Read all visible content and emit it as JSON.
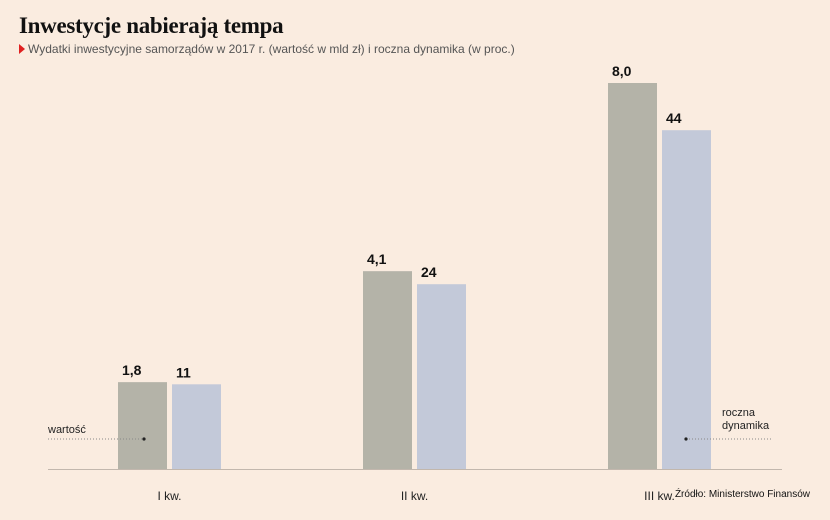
{
  "header": {
    "title": "Inwestycje nabierają tempa",
    "subtitle": "Wydatki inwestycyjne samorządów w 2017 r. (wartość w mld zł) i roczna dynamika (w proc.)"
  },
  "source": "Źródło: Ministerstwo Finansów",
  "colors": {
    "background": "#faece0",
    "series_value": "#b4b3a8",
    "series_growth": "#c3c9d9",
    "marker": "#e02020"
  },
  "chart_data": {
    "type": "bar",
    "categories": [
      "I kw.",
      "II kw.",
      "III kw."
    ],
    "series": [
      {
        "key": "value",
        "values": [
          1.8,
          4.1,
          8.0
        ],
        "labels": [
          "1,8",
          "4,1",
          "8,0"
        ]
      },
      {
        "key": "growth",
        "values": [
          11,
          24,
          44
        ],
        "labels": [
          "11",
          "24",
          "44"
        ]
      }
    ],
    "annotations": [
      "wartość",
      "roczna dynamika"
    ],
    "xlabel": "",
    "ylabel": "",
    "grid": false,
    "legend": "none (callout labels)"
  }
}
